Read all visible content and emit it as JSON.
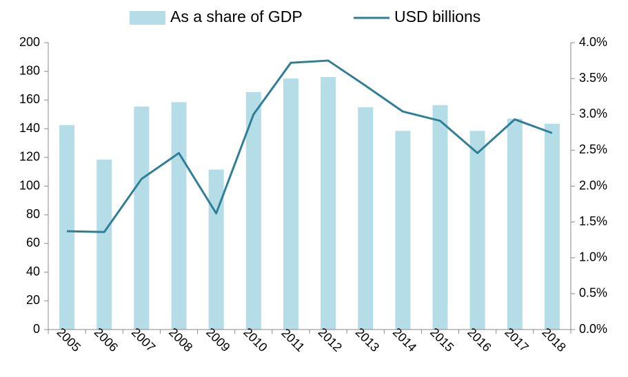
{
  "chart_data": {
    "type": "bar-line",
    "categories": [
      "2005",
      "2006",
      "2007",
      "2008",
      "2009",
      "2010",
      "2011",
      "2012",
      "2013",
      "2014",
      "2015",
      "2016",
      "2017",
      "2018"
    ],
    "series": [
      {
        "name": "As a share of GDP",
        "type": "bar",
        "axis": "y2",
        "color": "#b4dde7",
        "values": [
          2.85,
          2.37,
          3.11,
          3.17,
          2.23,
          3.31,
          3.5,
          3.52,
          3.1,
          2.77,
          3.13,
          2.77,
          2.94,
          2.87
        ]
      },
      {
        "name": "USD billions",
        "type": "line",
        "axis": "y",
        "color": "#2e7f96",
        "values": [
          68.5,
          68,
          105,
          123,
          81,
          150,
          186,
          187.5,
          170,
          152,
          145.5,
          123,
          146.5,
          137
        ]
      }
    ],
    "ylim": [
      0,
      200
    ],
    "yticks": [
      0,
      20,
      40,
      60,
      80,
      100,
      120,
      140,
      160,
      180,
      200
    ],
    "y2lim": [
      0,
      4
    ],
    "y2ticks": [
      {
        "value": 0,
        "label": "0.0%"
      },
      {
        "value": 0.5,
        "label": "0.5%"
      },
      {
        "value": 1,
        "label": "1.0%"
      },
      {
        "value": 1.5,
        "label": "1.5%"
      },
      {
        "value": 2,
        "label": "2.0%"
      },
      {
        "value": 2.5,
        "label": "2.5%"
      },
      {
        "value": 3,
        "label": "3.0%"
      },
      {
        "value": 3.5,
        "label": "3.5%"
      },
      {
        "value": 4,
        "label": "4.0%"
      }
    ],
    "legend": "top"
  }
}
